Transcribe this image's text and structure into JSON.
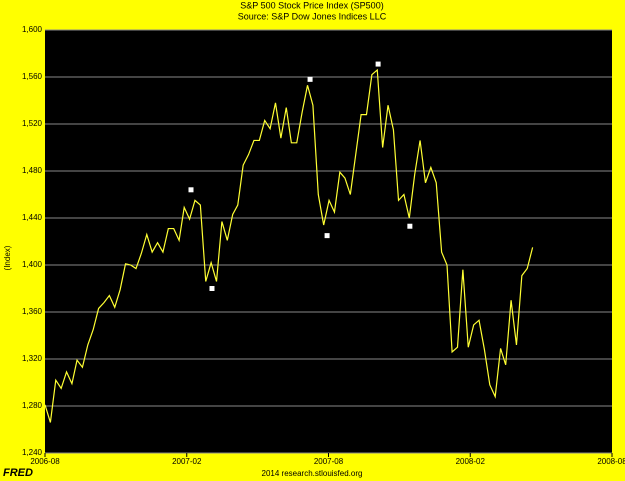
{
  "chart_data": {
    "type": "line",
    "title": "S&P 500 Stock Price Index (SP500)",
    "subtitle": "Source: S&P Dow Jones Indices LLC",
    "y_label": "(Index)",
    "footer": "2014 research.stlouisfed.org",
    "logo": "FRED",
    "background": "#ffff00",
    "plot_background": "#000000",
    "grid": true,
    "series": [
      {
        "color": "#ffff33",
        "x": [
          2006.583,
          2006.602,
          2006.621,
          2006.64,
          2006.659,
          2006.678,
          2006.696,
          2006.715,
          2006.734,
          2006.753,
          2006.772,
          2006.791,
          2006.81,
          2006.829,
          2006.848,
          2006.867,
          2006.885,
          2006.904,
          2006.923,
          2006.942,
          2006.961,
          2006.98,
          2006.999,
          2007.018,
          2007.037,
          2007.056,
          2007.074,
          2007.093,
          2007.112,
          2007.131,
          2007.15,
          2007.169,
          2007.188,
          2007.207,
          2007.226,
          2007.245,
          2007.263,
          2007.282,
          2007.301,
          2007.32,
          2007.339,
          2007.358,
          2007.377,
          2007.396,
          2007.415,
          2007.434,
          2007.452,
          2007.471,
          2007.49,
          2007.509,
          2007.528,
          2007.547,
          2007.566,
          2007.585,
          2007.604,
          2007.623,
          2007.641,
          2007.66,
          2007.679,
          2007.698,
          2007.717,
          2007.736,
          2007.755,
          2007.774,
          2007.793,
          2007.812,
          2007.83,
          2007.849,
          2007.868,
          2007.887,
          2007.906,
          2007.925,
          2007.944,
          2007.963,
          2007.982,
          2008.001,
          2008.019,
          2008.038,
          2008.057,
          2008.076,
          2008.095,
          2008.114,
          2008.133,
          2008.152,
          2008.171,
          2008.19,
          2008.208,
          2008.227,
          2008.246,
          2008.265,
          2008.284,
          2008.303
        ],
        "values": [
          1281,
          1266,
          1302,
          1295,
          1309,
          1299,
          1319,
          1313,
          1332,
          1345,
          1363,
          1368,
          1374,
          1364,
          1379,
          1401,
          1400,
          1397,
          1410,
          1426,
          1411,
          1419,
          1411,
          1431,
          1431,
          1421,
          1449,
          1439,
          1455,
          1451,
          1386,
          1402,
          1386,
          1437,
          1421,
          1443,
          1451,
          1485,
          1494,
          1506,
          1506,
          1523,
          1516,
          1538,
          1508,
          1534,
          1504,
          1504,
          1530,
          1553,
          1536,
          1460,
          1434,
          1455,
          1445,
          1479,
          1474,
          1460,
          1494,
          1528,
          1528,
          1562,
          1566,
          1500,
          1536,
          1515,
          1455,
          1460,
          1440,
          1477,
          1506,
          1470,
          1483,
          1470,
          1411,
          1400,
          1326,
          1330,
          1396,
          1330,
          1349,
          1353,
          1328,
          1298,
          1288,
          1329,
          1315,
          1370,
          1332,
          1391,
          1397,
          1415
        ]
      }
    ],
    "markers": {
      "color": "#ffffff",
      "x": [
        2007.098,
        2007.172,
        2007.518,
        2007.578,
        2007.758,
        2007.87
      ],
      "values": [
        1464,
        1380,
        1558,
        1425,
        1571,
        1433
      ]
    },
    "xlim": [
      2006.583,
      2008.583
    ],
    "xticks": [
      {
        "value": 2006.583,
        "label": "2006-08"
      },
      {
        "value": 2007.083,
        "label": "2007-02"
      },
      {
        "value": 2007.583,
        "label": "2007-08"
      },
      {
        "value": 2008.083,
        "label": "2008-02"
      },
      {
        "value": 2008.583,
        "label": "2008-08"
      }
    ],
    "ylim": [
      1240,
      1600
    ],
    "yticks": [
      {
        "value": 1240,
        "label": "1,240"
      },
      {
        "value": 1280,
        "label": "1,280"
      },
      {
        "value": 1320,
        "label": "1,320"
      },
      {
        "value": 1360,
        "label": "1,360"
      },
      {
        "value": 1400,
        "label": "1,400"
      },
      {
        "value": 1440,
        "label": "1,440"
      },
      {
        "value": 1480,
        "label": "1,480"
      },
      {
        "value": 1520,
        "label": "1,520"
      },
      {
        "value": 1560,
        "label": "1,560"
      },
      {
        "value": 1600,
        "label": "1,600"
      }
    ]
  }
}
